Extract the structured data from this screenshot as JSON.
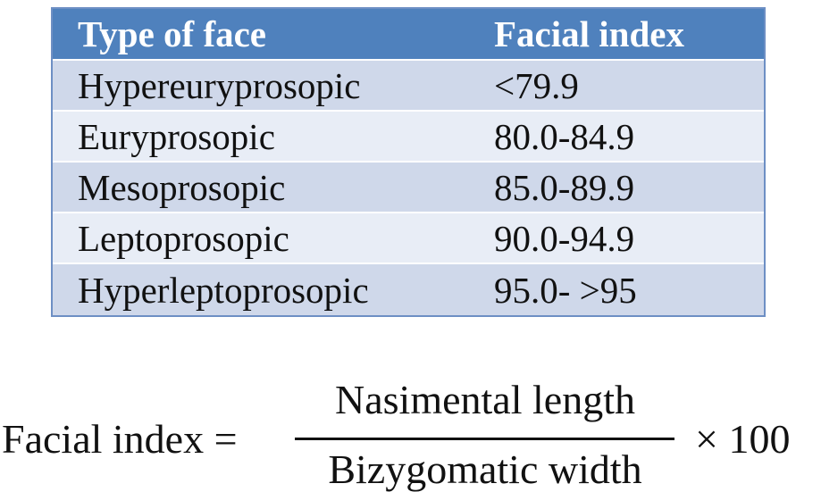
{
  "table": {
    "header": [
      "Type of face",
      "Facial index"
    ],
    "rows": [
      [
        "Hypereuryprosopic",
        "<79.9"
      ],
      [
        "Euryprosopic",
        "80.0-84.9"
      ],
      [
        "Mesoprosopic",
        "85.0-89.9"
      ],
      [
        "Leptoprosopic",
        "90.0-94.9"
      ],
      [
        "Hyperleptoprosopic",
        "95.0- >95"
      ]
    ]
  },
  "formula": {
    "left": "Facial index =",
    "numerator": "Nasimental length",
    "denominator": "Bizygomatic width",
    "multiplier": "× 100"
  }
}
